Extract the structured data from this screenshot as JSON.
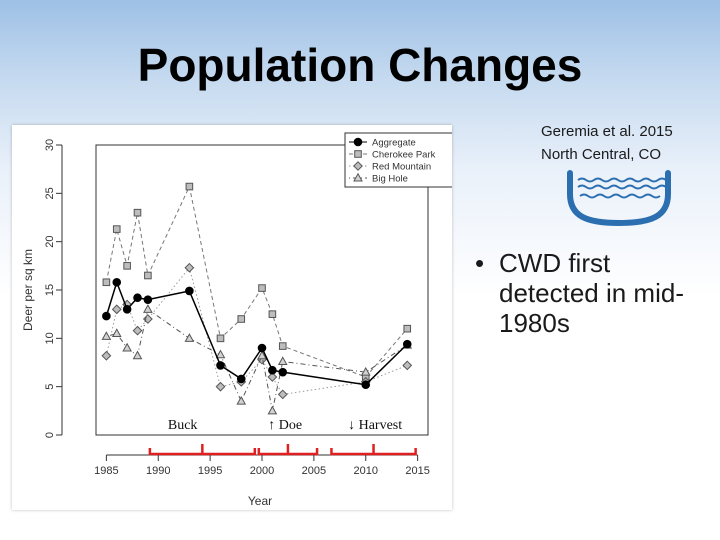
{
  "slide": {
    "title": "Population Changes",
    "citation_line1": "Geremia et al. 2015",
    "citation_line2": "North Central, CO",
    "bullet_marker": "•",
    "bullet_text": "CWD first detected in mid-1980s",
    "bowl_icon": "bowl-icon"
  },
  "chart_data": {
    "type": "line",
    "title": "",
    "xlabel": "Year",
    "ylabel": "Deer per sq km",
    "xlim": [
      1984,
      2016
    ],
    "ylim": [
      0,
      30
    ],
    "xticks": [
      1985,
      1990,
      1995,
      2000,
      2005,
      2010,
      2015
    ],
    "yticks": [
      0,
      5,
      10,
      15,
      20,
      25,
      30
    ],
    "legend_position": "top-right",
    "series": [
      {
        "name": "Aggregate",
        "color": "#000000",
        "marker": "circle-filled",
        "style": "solid",
        "x": [
          1985,
          1986,
          1987,
          1988,
          1989,
          1993,
          1996,
          1998,
          2000,
          2001,
          2002,
          2010,
          2014
        ],
        "y": [
          12.3,
          15.8,
          13.0,
          14.2,
          14.0,
          14.9,
          7.2,
          5.8,
          9.0,
          6.7,
          6.5,
          5.2,
          9.4
        ]
      },
      {
        "name": "Cherokee Park",
        "color": "#777777",
        "marker": "square",
        "style": "dashed",
        "x": [
          1985,
          1986,
          1987,
          1988,
          1989,
          1993,
          1996,
          1998,
          2000,
          2001,
          2002,
          2010,
          2014
        ],
        "y": [
          15.8,
          21.3,
          17.5,
          23.0,
          16.5,
          25.7,
          10.0,
          12.0,
          15.2,
          12.5,
          9.2,
          6.0,
          11.0
        ]
      },
      {
        "name": "Red Mountain",
        "color": "#999999",
        "marker": "diamond",
        "style": "dotted",
        "x": [
          1985,
          1986,
          1987,
          1988,
          1989,
          1993,
          1996,
          1998,
          2000,
          2001,
          2002,
          2010,
          2014
        ],
        "y": [
          8.2,
          13.0,
          13.5,
          10.8,
          12.0,
          17.3,
          5.0,
          5.5,
          7.8,
          6.0,
          4.2,
          5.5,
          7.2
        ]
      },
      {
        "name": "Big Hole",
        "color": "#555555",
        "marker": "triangle",
        "style": "dotdash",
        "x": [
          1985,
          1986,
          1987,
          1988,
          1989,
          1993,
          1996,
          1998,
          2000,
          2001,
          2002,
          2010,
          2014
        ],
        "y": [
          10.2,
          10.5,
          9.0,
          8.2,
          13.0,
          10.0,
          8.3,
          3.5,
          8.2,
          2.5,
          7.6,
          6.5,
          9.3
        ]
      }
    ],
    "annotations": [
      {
        "label": "Buck",
        "bracket_from": 1989,
        "bracket_to": 1999.5
      },
      {
        "label": "↑ Doe",
        "bracket_from": 1999.5,
        "bracket_to": 2005.5
      },
      {
        "label": "↓ Harvest",
        "bracket_from": 2006.5,
        "bracket_to": 2015
      }
    ],
    "annotation_color": "#e02020"
  }
}
